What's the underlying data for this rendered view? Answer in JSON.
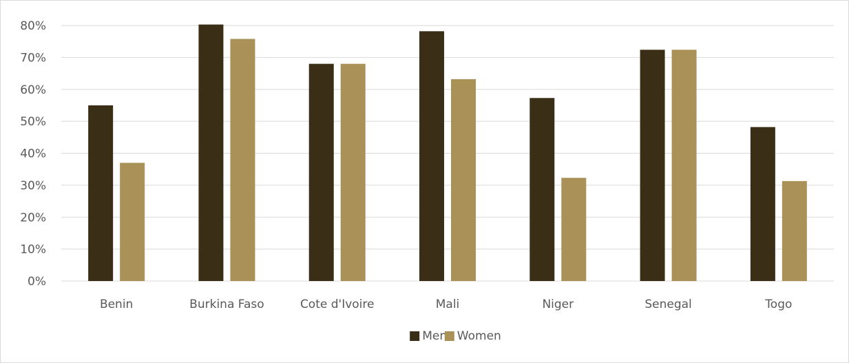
{
  "chart_data": {
    "type": "bar",
    "title": "",
    "xlabel": "",
    "ylabel": "",
    "categories": [
      "Benin",
      "Burkina Faso",
      "Cote d'Ivoire",
      "Mali",
      "Niger",
      "Senegal",
      "Togo"
    ],
    "series": [
      {
        "name": "Men",
        "color": "#3a2f16",
        "values": [
          55,
          80.3,
          68,
          78.2,
          57.3,
          72.4,
          48.2
        ]
      },
      {
        "name": "Women",
        "color": "#aa9158",
        "values": [
          37,
          75.8,
          68,
          63.2,
          32.3,
          72.4,
          31.3
        ]
      }
    ],
    "ylim": [
      0,
      80
    ],
    "y_ticks": [
      0,
      10,
      20,
      30,
      40,
      50,
      60,
      70,
      80
    ],
    "y_tick_format": "percent",
    "grid": true,
    "gridline_color": "#d9d9d9",
    "legend_position": "bottom"
  }
}
